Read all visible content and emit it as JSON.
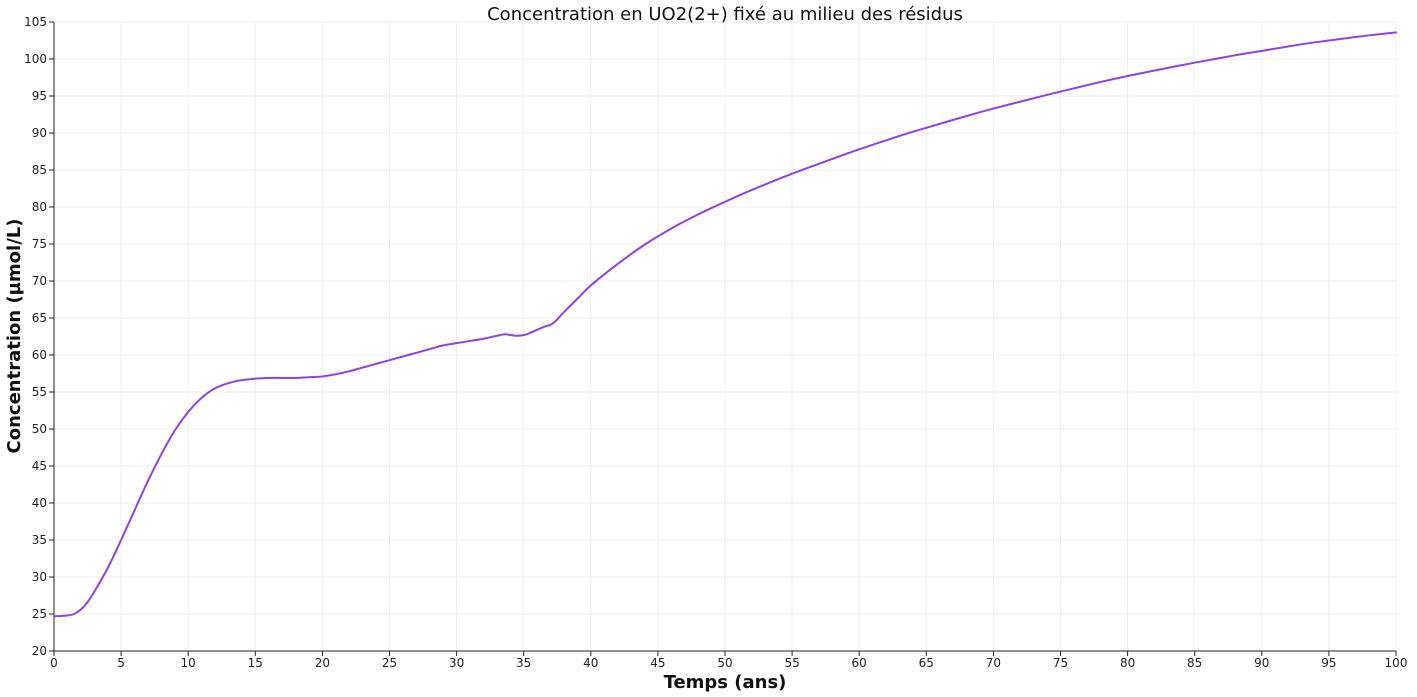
{
  "chart_data": {
    "type": "line",
    "title": "Concentration en UO2(2+) fixé au milieu des résidus",
    "xlabel": "Temps (ans)",
    "ylabel": "Concentration (µmol/L)",
    "xlim": [
      0,
      100
    ],
    "ylim": [
      20,
      105
    ],
    "x_ticks": [
      0,
      5,
      10,
      15,
      20,
      25,
      30,
      35,
      40,
      45,
      50,
      55,
      60,
      65,
      70,
      75,
      80,
      85,
      90,
      95,
      100
    ],
    "y_ticks": [
      20,
      25,
      30,
      35,
      40,
      45,
      50,
      55,
      60,
      65,
      70,
      75,
      80,
      85,
      90,
      95,
      100,
      105
    ],
    "grid": true,
    "legend": "none",
    "series": [
      {
        "color": "#8e44dd",
        "x": [
          0,
          1,
          1.5,
          2,
          2.5,
          3,
          4,
          5,
          6,
          7,
          8,
          9,
          10,
          11,
          12,
          13,
          14,
          15,
          16,
          17,
          18,
          19,
          20,
          21,
          22,
          23,
          24,
          25,
          26,
          27,
          28,
          29,
          30,
          31,
          32,
          33,
          33.6,
          34,
          34.5,
          35,
          35.5,
          36,
          36.5,
          37.2,
          38,
          39,
          40,
          42,
          44,
          46,
          48,
          50,
          52,
          55,
          58,
          60,
          63,
          65,
          68,
          70,
          73,
          75,
          78,
          80,
          83,
          85,
          88,
          90,
          93,
          95,
          98,
          100
        ],
        "y": [
          24.7,
          24.8,
          25.0,
          25.6,
          26.6,
          28.0,
          31.2,
          35.0,
          39.0,
          43.0,
          46.6,
          49.8,
          52.3,
          54.2,
          55.5,
          56.2,
          56.6,
          56.8,
          56.9,
          56.9,
          56.9,
          57.0,
          57.1,
          57.4,
          57.8,
          58.3,
          58.8,
          59.3,
          59.8,
          60.3,
          60.8,
          61.3,
          61.6,
          61.9,
          62.2,
          62.6,
          62.8,
          62.7,
          62.6,
          62.7,
          63.0,
          63.4,
          63.8,
          64.3,
          65.8,
          67.6,
          69.4,
          72.3,
          74.9,
          77.1,
          79.0,
          80.7,
          82.3,
          84.5,
          86.5,
          87.8,
          89.6,
          90.7,
          92.3,
          93.3,
          94.7,
          95.6,
          96.9,
          97.7,
          98.8,
          99.5,
          100.5,
          101.1,
          102.0,
          102.5,
          103.2,
          103.6
        ]
      }
    ]
  }
}
